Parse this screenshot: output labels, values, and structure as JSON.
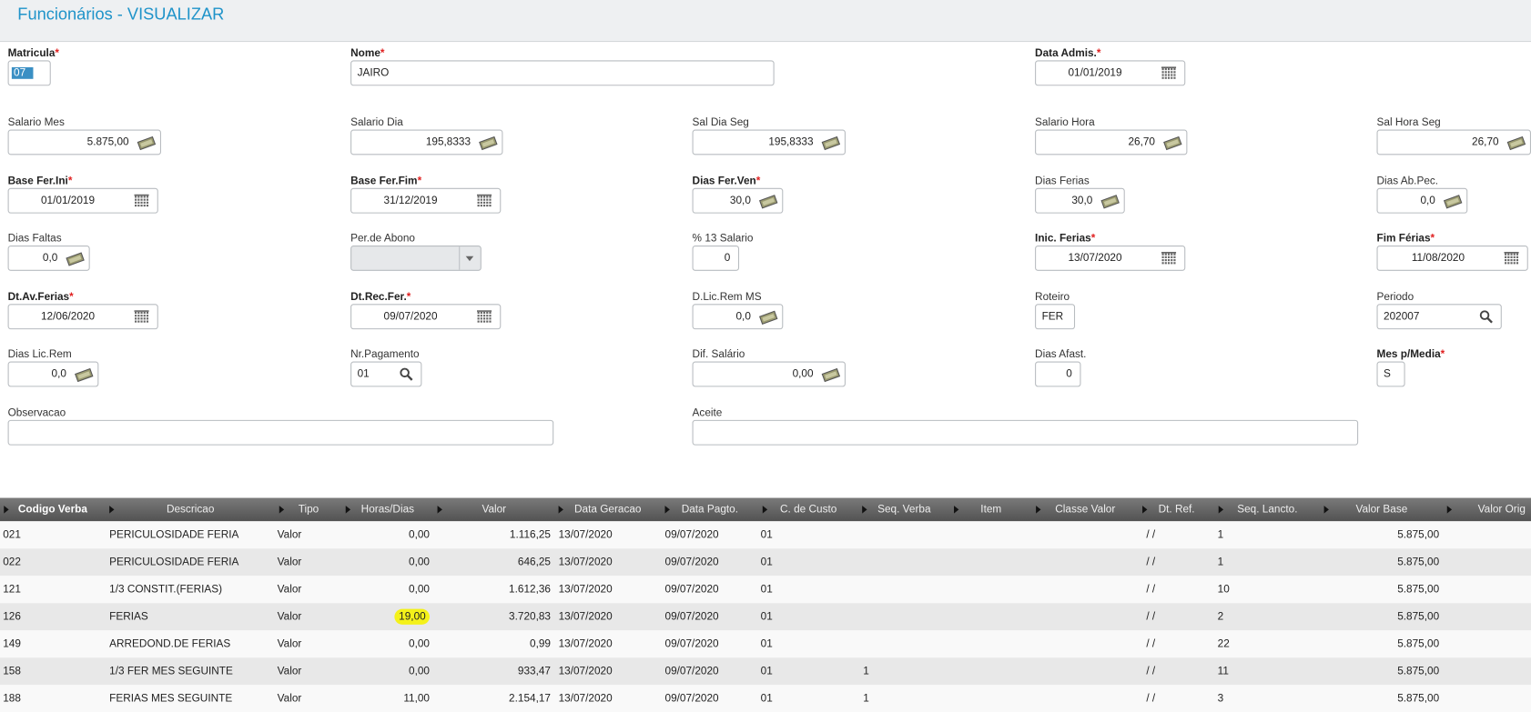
{
  "header": {
    "title": "Funcionários - VISUALIZAR"
  },
  "form": {
    "fields": [
      {
        "label": "Matricula",
        "required": "*",
        "value": "07"
      },
      {
        "label": "Nome",
        "required": "*",
        "value": "JAIRO"
      },
      {
        "label": "Data Admis.",
        "required": "*",
        "value": "01/01/2019"
      },
      {
        "label": "Salario Mes",
        "value": "5.875,00"
      },
      {
        "label": "Salario Dia",
        "value": "195,8333"
      },
      {
        "label": "Sal Dia Seg",
        "value": "195,8333"
      },
      {
        "label": "Salario Hora",
        "value": "26,70"
      },
      {
        "label": "Sal Hora Seg",
        "value": "26,70"
      },
      {
        "label": "Base Fer.Ini",
        "required": "*",
        "value": "01/01/2019"
      },
      {
        "label": "Base Fer.Fim",
        "required": "*",
        "value": "31/12/2019"
      },
      {
        "label": "Dias Fer.Ven",
        "required": "*",
        "value": "30,0"
      },
      {
        "label": "Dias Ferias",
        "value": "30,0"
      },
      {
        "label": "Dias Ab.Pec.",
        "value": "0,0"
      },
      {
        "label": "Dias Faltas",
        "value": "0,0"
      },
      {
        "label": "Per.de Abono"
      },
      {
        "label": "% 13 Salario",
        "value": "0"
      },
      {
        "label": "Inic. Ferias",
        "required": "*",
        "value": "13/07/2020"
      },
      {
        "label": "Fim Férias",
        "required": "*",
        "value": "11/08/2020"
      },
      {
        "label": "Dt.Av.Ferias",
        "required": "*",
        "value": "12/06/2020"
      },
      {
        "label": "Dt.Rec.Fer.",
        "required": "*",
        "value": "09/07/2020"
      },
      {
        "label": "D.Lic.Rem MS",
        "value": "0,0"
      },
      {
        "label": "Roteiro",
        "value": "FER"
      },
      {
        "label": "Periodo",
        "value": "202007"
      },
      {
        "label": "Dias Lic.Rem",
        "value": "0,0"
      },
      {
        "label": "Nr.Pagamento",
        "value": "01"
      },
      {
        "label": "Dif. Salário",
        "value": "0,00"
      },
      {
        "label": "Dias Afast.",
        "value": "0"
      },
      {
        "label": "Mes p/Media",
        "required": "*",
        "value": "S"
      },
      {
        "label": "Observacao"
      },
      {
        "label": "Aceite"
      }
    ]
  },
  "table": {
    "columns": [
      "Codigo Verba",
      "Descricao",
      "Tipo",
      "Horas/Dias",
      "Valor",
      "Data Geracao",
      "Data Pagto.",
      "C. de Custo",
      "Seq. Verba",
      "Item",
      "Classe Valor",
      "Dt. Ref.",
      "Seq. Lancto.",
      "Valor Base",
      "Valor Orig"
    ],
    "rows": [
      [
        "021",
        "PERICULOSIDADE FERIA",
        "Valor",
        "0,00",
        "1.116,25",
        "13/07/2020",
        "09/07/2020",
        "01",
        null,
        null,
        null,
        "/ /",
        "1",
        "5.875,00",
        null
      ],
      [
        "022",
        "PERICULOSIDADE FERIA",
        "Valor",
        "0,00",
        "646,25",
        "13/07/2020",
        "09/07/2020",
        "01",
        null,
        null,
        null,
        "/ /",
        "1",
        "5.875,00",
        null
      ],
      [
        "121",
        "1/3 CONSTIT.(FERIAS)",
        "Valor",
        "0,00",
        "1.612,36",
        "13/07/2020",
        "09/07/2020",
        "01",
        null,
        null,
        null,
        "/ /",
        "10",
        "5.875,00",
        null
      ],
      [
        "126",
        "FERIAS",
        "Valor",
        "19,00",
        "3.720,83",
        "13/07/2020",
        "09/07/2020",
        "01",
        null,
        null,
        null,
        "/ /",
        "2",
        "5.875,00",
        null
      ],
      [
        "149",
        "ARREDOND.DE FERIAS",
        "Valor",
        "0,00",
        "0,99",
        "13/07/2020",
        "09/07/2020",
        "01",
        null,
        null,
        null,
        "/ /",
        "22",
        "5.875,00",
        null
      ],
      [
        "158",
        "1/3 FER MES SEGUINTE",
        "Valor",
        "0,00",
        "933,47",
        "13/07/2020",
        "09/07/2020",
        "01",
        "1",
        null,
        null,
        "/ /",
        "11",
        "5.875,00",
        null
      ],
      [
        "188",
        "FERIAS MES SEGUINTE",
        "Valor",
        "11,00",
        "2.154,17",
        "13/07/2020",
        "09/07/2020",
        "01",
        "1",
        null,
        null,
        "/ /",
        "3",
        "5.875,00",
        null
      ]
    ]
  }
}
